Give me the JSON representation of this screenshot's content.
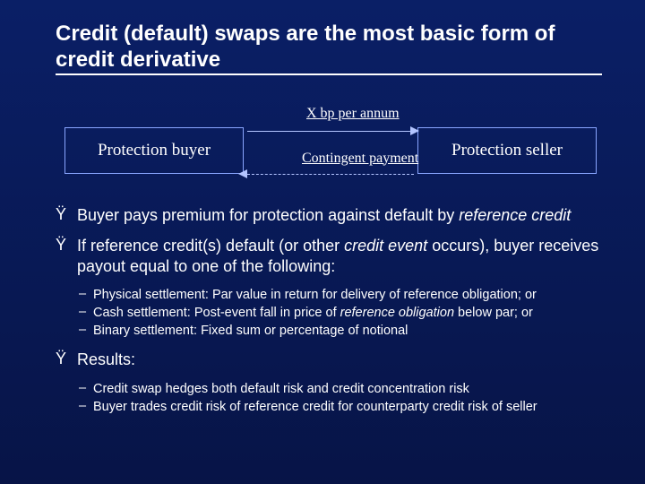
{
  "title": "Credit (default) swaps are the most basic form of credit derivative",
  "diagram": {
    "left_box": "Protection buyer",
    "right_box": "Protection seller",
    "top_label": "X bp per annum",
    "bottom_label": "Contingent payment",
    "box_border_color": "#89a5ff",
    "arrow_color": "#b3c4ff"
  },
  "bullets": [
    {
      "bullet_char": "Ÿ",
      "html": "Buyer pays premium for protection against default by <em class='i'>reference credit</em>",
      "subs": []
    },
    {
      "bullet_char": "Ÿ",
      "html": "If reference credit(s) default (or other <em class='i'>credit event</em> occurs), buyer receives payout equal to one of the following:",
      "subs": [
        {
          "bullet_char": "–",
          "html": "Physical settlement: Par value in return for delivery of reference obligation; or"
        },
        {
          "bullet_char": "–",
          "html": "Cash settlement: Post-event fall in price of <em class='i'>reference obligation</em> below par; or"
        },
        {
          "bullet_char": "–",
          "html": "Binary settlement: Fixed sum or percentage of notional"
        }
      ]
    },
    {
      "bullet_char": "Ÿ",
      "html": "Results:",
      "subs": [
        {
          "bullet_char": "–",
          "html": "Credit swap hedges both default risk and credit concentration risk"
        },
        {
          "bullet_char": "–",
          "html": "Buyer trades credit risk of reference credit for counterparty credit risk of seller"
        }
      ]
    }
  ],
  "colors": {
    "background_top": "#0a1f66",
    "background_bottom": "#071447",
    "text": "#ffffff"
  },
  "fonts": {
    "title_family": "Arial",
    "title_size_pt": 24,
    "body_family": "Arial",
    "body_size_pt": 18,
    "sub_size_pt": 14.5,
    "diagram_family": "Times New Roman",
    "diagram_size_pt": 19
  }
}
